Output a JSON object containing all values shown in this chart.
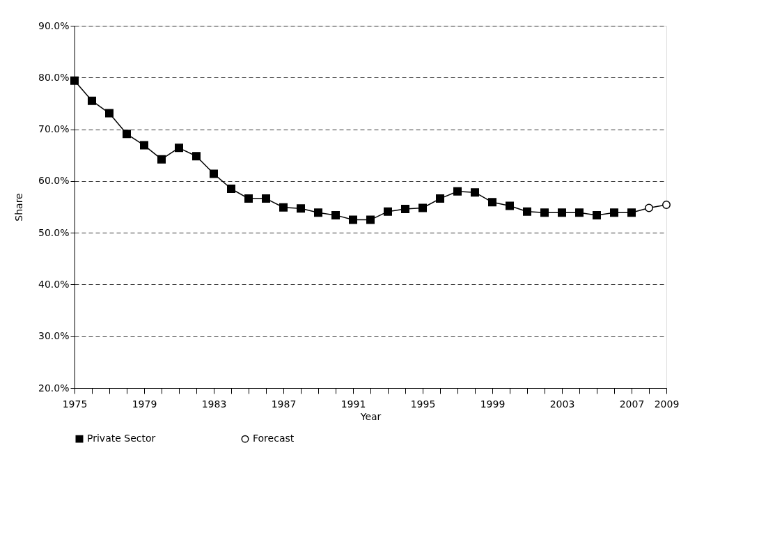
{
  "chart_data": {
    "type": "line",
    "xlabel": "Year",
    "ylabel": "Share",
    "x": [
      1975,
      1976,
      1977,
      1978,
      1979,
      1980,
      1981,
      1982,
      1983,
      1984,
      1985,
      1986,
      1987,
      1988,
      1989,
      1990,
      1991,
      1992,
      1993,
      1994,
      1995,
      1996,
      1997,
      1998,
      1999,
      2000,
      2001,
      2002,
      2003,
      2004,
      2005,
      2006,
      2007
    ],
    "series": [
      {
        "name": "Private Sector",
        "color": "#000000",
        "marker": "square",
        "values": [
          79.4,
          75.5,
          73.1,
          69.1,
          66.9,
          64.2,
          66.4,
          64.8,
          61.4,
          58.5,
          56.6,
          56.6,
          54.9,
          54.7,
          53.9,
          53.4,
          52.5,
          52.5,
          54.1,
          54.6,
          54.8,
          56.6,
          58.0,
          57.8,
          55.9,
          55.2,
          54.1,
          53.9,
          53.9,
          53.9,
          53.4,
          53.9,
          53.9
        ]
      },
      {
        "name": "Forecast",
        "color": "#000000",
        "marker": "circle",
        "x": [
          2007,
          2008,
          2009
        ],
        "values": [
          53.9,
          54.8,
          55.4
        ]
      }
    ],
    "xlim": [
      1975,
      2009
    ],
    "xticks": [
      1975,
      {
        "value": 1976,
        "label": null
      },
      {
        "value": 1977,
        "label": null
      },
      {
        "value": 1978,
        "label": null
      },
      1979,
      {
        "value": 1980,
        "label": null
      },
      {
        "value": 1981,
        "label": null
      },
      {
        "value": 1982,
        "label": null
      },
      1983,
      {
        "value": 1984,
        "label": null
      },
      {
        "value": 1985,
        "label": null
      },
      {
        "value": 1986,
        "label": null
      },
      1987,
      {
        "value": 1988,
        "label": null
      },
      {
        "value": 1989,
        "label": null
      },
      {
        "value": 1990,
        "label": null
      },
      1991,
      {
        "value": 1992,
        "label": null
      },
      {
        "value": 1993,
        "label": null
      },
      {
        "value": 1994,
        "label": null
      },
      1995,
      {
        "value": 1996,
        "label": null
      },
      {
        "value": 1997,
        "label": null
      },
      {
        "value": 1998,
        "label": null
      },
      1999,
      {
        "value": 2000,
        "label": null
      },
      {
        "value": 2001,
        "label": null
      },
      {
        "value": 2002,
        "label": null
      },
      2003,
      {
        "value": 2004,
        "label": null
      },
      {
        "value": 2005,
        "label": null
      },
      {
        "value": 2006,
        "label": null
      },
      2007,
      {
        "value": 2008,
        "label": null
      },
      2009
    ],
    "ylim": [
      20,
      90
    ],
    "yticks": [
      {
        "value": 20,
        "label": "20.0%"
      },
      {
        "value": 30,
        "label": "30.0%"
      },
      {
        "value": 40,
        "label": "40.0%"
      },
      {
        "value": 50,
        "label": "50.0%"
      },
      {
        "value": 60,
        "label": "60.0%"
      },
      {
        "value": 70,
        "label": "70.0%"
      },
      {
        "value": 80,
        "label": "80.0%"
      },
      {
        "value": 90,
        "label": "90.0%"
      }
    ],
    "grid": "y",
    "legend": "bottom",
    "line_style": "solid"
  }
}
